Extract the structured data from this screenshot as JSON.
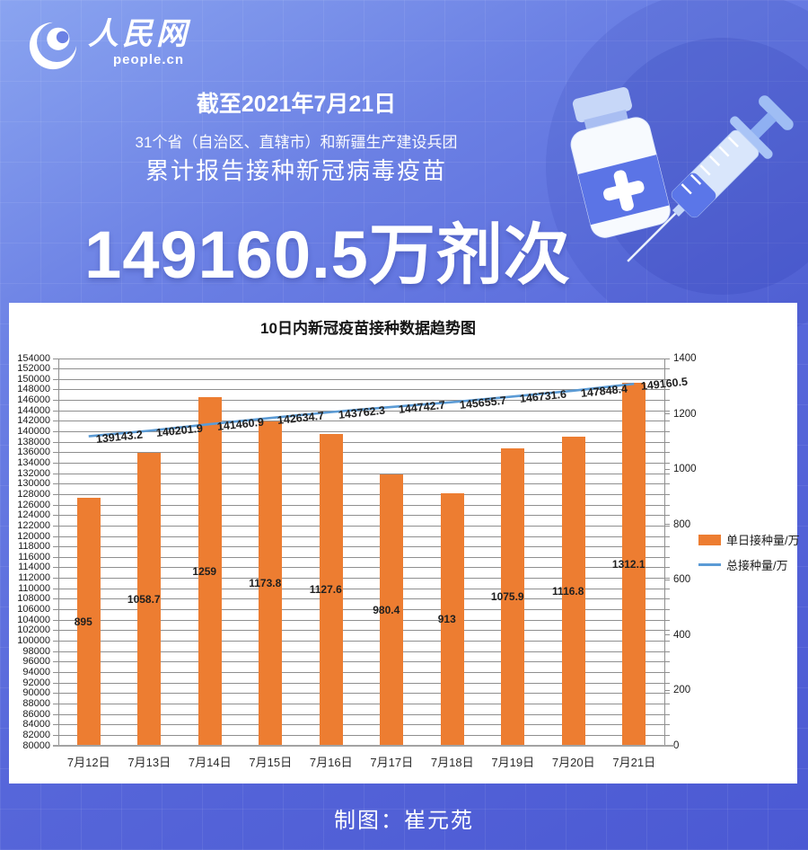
{
  "header": {
    "logo_brand": "人民网",
    "logo_domain": "people.cn",
    "date_line": "截至2021年7月21日",
    "scope_line": "31个省（自治区、直辖市）和新疆生产建设兵团",
    "subtitle": "累计报告接种新冠病毒疫苗",
    "headline_number": "149160.5万剂次"
  },
  "chart_data": {
    "type": "bar",
    "title": "10日内新冠疫苗接种数据趋势图",
    "categories": [
      "7月12日",
      "7月13日",
      "7月14日",
      "7月15日",
      "7月16日",
      "7月17日",
      "7月18日",
      "7月19日",
      "7月20日",
      "7月21日"
    ],
    "series": [
      {
        "name": "单日接种量/万",
        "type": "bar",
        "axis": "right",
        "color": "#ED7D31",
        "values": [
          895,
          1058.7,
          1259,
          1173.8,
          1127.6,
          980.4,
          913,
          1075.9,
          1116.8,
          1312.1
        ]
      },
      {
        "name": "总接种量/万",
        "type": "line",
        "axis": "left",
        "color": "#5B9BD5",
        "values": [
          139143.2,
          140201.9,
          141460.9,
          142634.7,
          143762.3,
          144742.7,
          145655.7,
          146731.6,
          147848.4,
          149160.5
        ]
      }
    ],
    "left_axis": {
      "min": 80000,
      "max": 154000,
      "step": 2000
    },
    "right_axis": {
      "min": 0,
      "max": 1400,
      "step": 200
    },
    "grid": true,
    "legend_position": "right"
  },
  "footer": {
    "credit": "制图：崔元苑"
  },
  "colors": {
    "bar": "#ED7D31",
    "line": "#5B9BD5",
    "background_top": "#8aa4f0",
    "background_bottom": "#4b59d3",
    "panel": "#ffffff",
    "gridline": "#8f8f8f"
  }
}
